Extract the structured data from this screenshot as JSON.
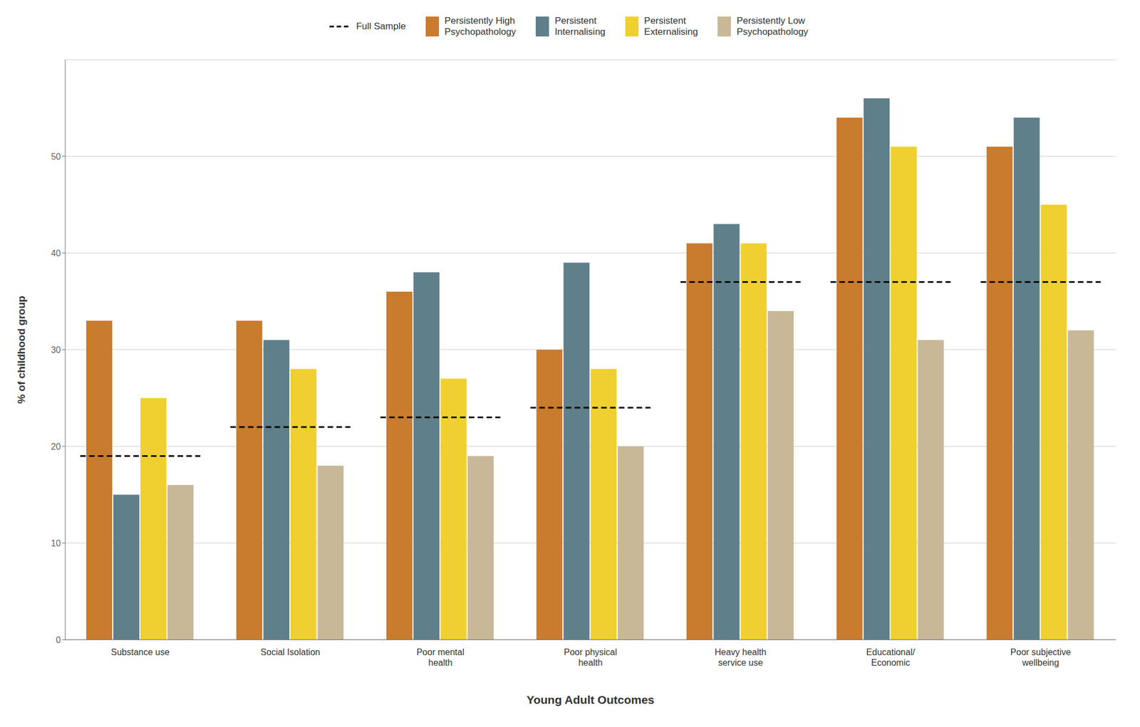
{
  "chart_data": {
    "type": "bar",
    "xlabel": "Young Adult Outcomes",
    "ylabel": "% of childhood group",
    "categories": [
      "Substance use",
      "Social Isolation",
      "Poor mental\nhealth",
      "Poor physical\nhealth",
      "Heavy health\nservice use",
      "Educational/\nEconomic",
      "Poor subjective\nwellbeing"
    ],
    "series": [
      {
        "name": "Full Sample",
        "type": "line",
        "line_style": "dashed",
        "color": "#000000",
        "values": [
          19,
          22,
          23,
          24,
          37,
          37,
          37
        ]
      },
      {
        "name": "Persistently High\nPsychopathology",
        "type": "bar",
        "color": "#C97B2E",
        "values": [
          33,
          33,
          36,
          30,
          41,
          54,
          51
        ]
      },
      {
        "name": "Persistent\nInternalising",
        "type": "bar",
        "color": "#5F7F8A",
        "values": [
          15,
          31,
          38,
          39,
          43,
          56,
          54
        ]
      },
      {
        "name": "Persistent\nExternalising",
        "type": "bar",
        "color": "#F0D030",
        "values": [
          25,
          28,
          27,
          28,
          41,
          51,
          45
        ]
      },
      {
        "name": "Persistently Low\nPsychopathology",
        "type": "bar",
        "color": "#C8B898",
        "values": [
          16,
          18,
          19,
          20,
          34,
          31,
          32
        ]
      }
    ],
    "ylim": [
      0,
      60
    ],
    "yticks": [
      0,
      10,
      20,
      30,
      40,
      50
    ],
    "grid": true,
    "legend": "top"
  }
}
